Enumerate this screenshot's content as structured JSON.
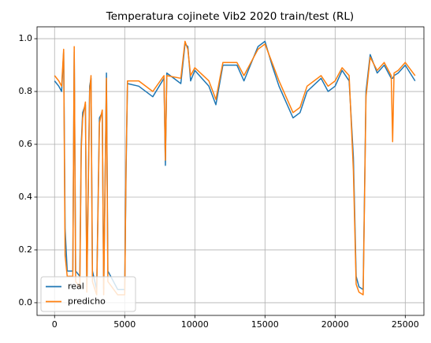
{
  "chart_data": {
    "type": "line",
    "title": "Temperatura cojinete Vib2 2020 train/test (RL)",
    "x": [
      0,
      300,
      500,
      650,
      750,
      900,
      1300,
      1400,
      1500,
      1800,
      1900,
      2000,
      2200,
      2300,
      2500,
      2600,
      2700,
      3000,
      3200,
      3400,
      3500,
      3700,
      3800,
      4500,
      5000,
      5100,
      5200,
      6000,
      7000,
      7800,
      7900,
      8000,
      9000,
      9300,
      9500,
      9700,
      10000,
      11000,
      11500,
      12000,
      13000,
      13500,
      14500,
      15000,
      15500,
      16000,
      17000,
      17500,
      18000,
      19000,
      19500,
      20000,
      20500,
      21000,
      21300,
      21500,
      21700,
      22000,
      22200,
      22500,
      23000,
      23500,
      24000,
      24100,
      24200,
      24500,
      25000,
      25700
    ],
    "series": [
      {
        "name": "real",
        "color": "#1f77b4",
        "values": [
          0.84,
          0.82,
          0.8,
          0.95,
          0.28,
          0.12,
          0.12,
          0.95,
          0.12,
          0.1,
          0.6,
          0.72,
          0.75,
          0.06,
          0.82,
          0.85,
          0.12,
          0.05,
          0.7,
          0.72,
          0.05,
          0.87,
          0.12,
          0.05,
          0.05,
          0.5,
          0.83,
          0.82,
          0.78,
          0.85,
          0.52,
          0.87,
          0.83,
          0.98,
          0.97,
          0.84,
          0.88,
          0.82,
          0.75,
          0.9,
          0.9,
          0.84,
          0.97,
          0.99,
          0.9,
          0.82,
          0.7,
          0.72,
          0.8,
          0.85,
          0.8,
          0.82,
          0.88,
          0.84,
          0.55,
          0.1,
          0.06,
          0.05,
          0.8,
          0.94,
          0.87,
          0.9,
          0.85,
          0.85,
          0.86,
          0.87,
          0.9,
          0.84
        ]
      },
      {
        "name": "predicho",
        "color": "#ff7f0e",
        "values": [
          0.86,
          0.84,
          0.82,
          0.96,
          0.18,
          0.1,
          0.1,
          0.97,
          0.08,
          0.06,
          0.58,
          0.7,
          0.76,
          0.04,
          0.8,
          0.86,
          0.08,
          0.03,
          0.68,
          0.73,
          0.03,
          0.85,
          0.08,
          0.03,
          0.03,
          0.53,
          0.84,
          0.84,
          0.8,
          0.86,
          0.54,
          0.86,
          0.85,
          0.99,
          0.96,
          0.86,
          0.89,
          0.84,
          0.77,
          0.91,
          0.91,
          0.86,
          0.96,
          0.98,
          0.91,
          0.84,
          0.72,
          0.74,
          0.82,
          0.86,
          0.82,
          0.84,
          0.89,
          0.86,
          0.5,
          0.07,
          0.04,
          0.03,
          0.78,
          0.93,
          0.88,
          0.91,
          0.86,
          0.61,
          0.87,
          0.88,
          0.91,
          0.86
        ]
      }
    ],
    "xlim": [
      -1250,
      26330
    ],
    "ylim": [
      -0.048,
      1.045
    ],
    "xticks": [
      0,
      5000,
      10000,
      15000,
      20000,
      25000
    ],
    "yticks": [
      {
        "value": 0,
        "label": "0.0"
      },
      {
        "value": 0.2,
        "label": "0.2"
      },
      {
        "value": 0.4,
        "label": "0.4"
      },
      {
        "value": 0.6,
        "label": "0.6"
      },
      {
        "value": 0.8,
        "label": "0.8"
      },
      {
        "value": 1.0,
        "label": "1.0"
      }
    ],
    "grid": true,
    "legend": "lower left"
  }
}
